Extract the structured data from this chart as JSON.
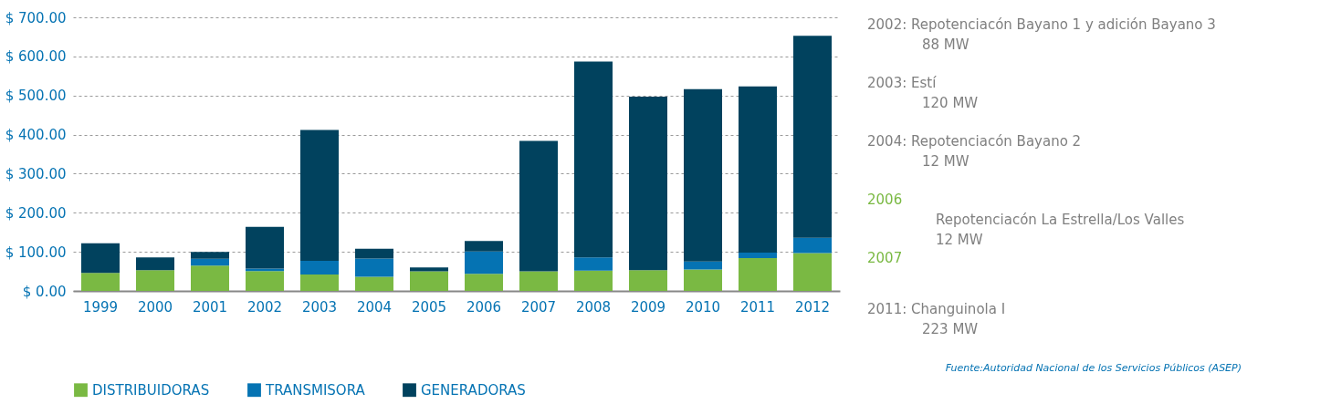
{
  "chart_data": {
    "type": "bar",
    "stacked": true,
    "categories": [
      "1999",
      "2000",
      "2001",
      "2002",
      "2003",
      "2004",
      "2005",
      "2006",
      "2007",
      "2008",
      "2009",
      "2010",
      "2011",
      "2012"
    ],
    "series": [
      {
        "name": "DISTRIBUIDORAS",
        "color": "#7ab943",
        "values": [
          46,
          53,
          65,
          51,
          42,
          36,
          50,
          44,
          50,
          52,
          53,
          55,
          84,
          97
        ]
      },
      {
        "name": "TRANSMISORA",
        "color": "#0573b3",
        "values": [
          0,
          0,
          17,
          6,
          35,
          47,
          0,
          57,
          0,
          34,
          0,
          20,
          14,
          39
        ]
      },
      {
        "name": "GENERADORAS",
        "color": "#01425e",
        "values": [
          76,
          33,
          18,
          107,
          335,
          25,
          10,
          27,
          334,
          501,
          444,
          441,
          425,
          517
        ]
      }
    ],
    "ylim": [
      0,
      700
    ],
    "yticks": [
      {
        "value": 0,
        "label": "$ 0.00"
      },
      {
        "value": 100,
        "label": "$ 100.00"
      },
      {
        "value": 200,
        "label": "$ 200.00"
      },
      {
        "value": 300,
        "label": "$ 300.00"
      },
      {
        "value": 400,
        "label": "$ 400.00"
      },
      {
        "value": 500,
        "label": "$ 500.00"
      },
      {
        "value": 600,
        "label": "$ 600.00"
      },
      {
        "value": 700,
        "label": "$ 700.00"
      }
    ],
    "grid": "y",
    "legend": "bottom",
    "annotations": [
      "2002: Repotenciacón Bayano 1 y adición Bayano 3",
      "88 MW",
      "2003: Estí",
      "120 MW",
      "2004: Repotenciacón Bayano 2",
      "12 MW",
      "2006",
      "2007",
      "Repotenciacón La Estrella/Los Valles",
      "12 MW",
      "2011: Changuinola I",
      "223 MW",
      "Fuente:Autoridad Nacional de los Servicios Públicos (ASEP)"
    ]
  }
}
